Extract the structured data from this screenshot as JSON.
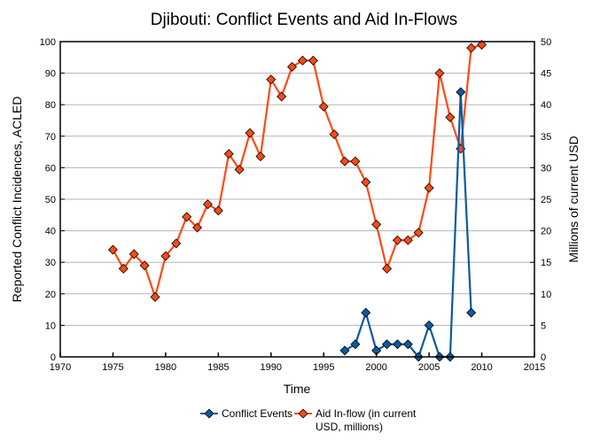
{
  "chart_data": {
    "type": "line",
    "title": "Djibouti: Conflict Events and Aid In-Flows",
    "xlabel": "Time",
    "ylabel_left": "Reported Conflict Incidences, ACLED",
    "ylabel_right": "Millions of current USD",
    "xlim": [
      1970,
      2015
    ],
    "ylim_left": [
      0,
      100
    ],
    "ylim_right": [
      0,
      50
    ],
    "x_ticks": [
      "1970",
      "1975",
      "1980",
      "1985",
      "1990",
      "1995",
      "2000",
      "2005",
      "2010",
      "2015"
    ],
    "y_ticks_left": [
      "0",
      "10",
      "20",
      "30",
      "40",
      "50",
      "60",
      "70",
      "80",
      "90",
      "100"
    ],
    "y_ticks_right": [
      "0",
      "5",
      "10",
      "15",
      "20",
      "25",
      "30",
      "35",
      "40",
      "45",
      "50"
    ],
    "grid": true,
    "legend_position": "bottom",
    "series": [
      {
        "name": "Conflict Events",
        "axis": "left",
        "color": "#0b5aa0",
        "x": [
          1997,
          1998,
          1999,
          2000,
          2001,
          2002,
          2003,
          2004,
          2005,
          2006,
          2007,
          2008,
          2009
        ],
        "values": [
          2,
          4,
          14,
          2,
          4,
          4,
          4,
          0,
          10,
          0,
          0,
          84,
          14
        ]
      },
      {
        "name": "Aid In-flow (in current USD, millions)",
        "legend_lines": [
          "Aid In-flow (in current",
          "USD, millions)"
        ],
        "axis": "right",
        "color": "#ff4a12",
        "x": [
          1975,
          1976,
          1977,
          1978,
          1979,
          1980,
          1981,
          1982,
          1983,
          1984,
          1985,
          1986,
          1987,
          1988,
          1989,
          1990,
          1991,
          1992,
          1993,
          1994,
          1995,
          1996,
          1997,
          1998,
          1999,
          2000,
          2001,
          2002,
          2003,
          2004,
          2005,
          2006,
          2007,
          2008,
          2009,
          2010
        ],
        "values": [
          17,
          14,
          16.3,
          14.5,
          9.5,
          16,
          18,
          22.2,
          20.5,
          24.2,
          23.2,
          32.2,
          29.7,
          35.5,
          31.8,
          44,
          41.3,
          46,
          47,
          47,
          39.7,
          35.3,
          31,
          31,
          27.7,
          21,
          14,
          18.5,
          18.5,
          19.7,
          26.8,
          45,
          38,
          33,
          49,
          49.5
        ]
      }
    ]
  }
}
